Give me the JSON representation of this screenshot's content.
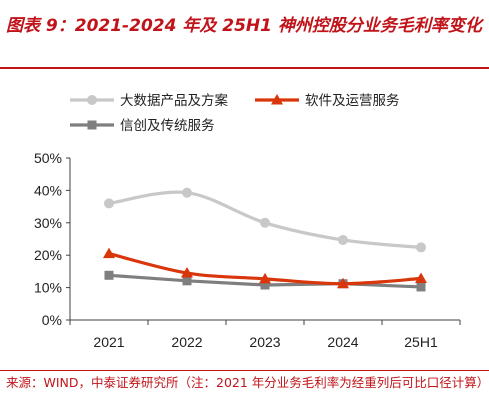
{
  "figure": {
    "title": "图表 9：2021-2024 年及 25H1 神州控股分业务毛利率变化",
    "source": "来源：WIND，中泰证券研究所（注：2021 年分业务毛利率为经重列后可比口径计算）"
  },
  "chart_data": {
    "type": "line",
    "title": "",
    "xlabel": "",
    "ylabel": "",
    "categories": [
      "2021",
      "2022",
      "2023",
      "2024",
      "25H1"
    ],
    "ylim": [
      0,
      50
    ],
    "yticks": [
      "0%",
      "10%",
      "20%",
      "30%",
      "40%",
      "50%"
    ],
    "ytick_values": [
      0,
      10,
      20,
      30,
      40,
      50
    ],
    "legend": "top-left",
    "grid": false,
    "series": [
      {
        "name": "大数据产品及方案",
        "values": [
          36,
          39.3,
          30,
          24.7,
          22.4
        ],
        "color": "#c8c8c8",
        "marker": "circle",
        "smooth": true
      },
      {
        "name": "软件及运营服务",
        "values": [
          20.5,
          14.5,
          12.7,
          11.2,
          12.8
        ],
        "color": "#d9360b",
        "marker": "triangle",
        "smooth": true
      },
      {
        "name": "信创及传统服务",
        "values": [
          13.8,
          12.1,
          10.8,
          11.2,
          10.2
        ],
        "color": "#7f7f7f",
        "marker": "square",
        "smooth": false
      }
    ]
  }
}
